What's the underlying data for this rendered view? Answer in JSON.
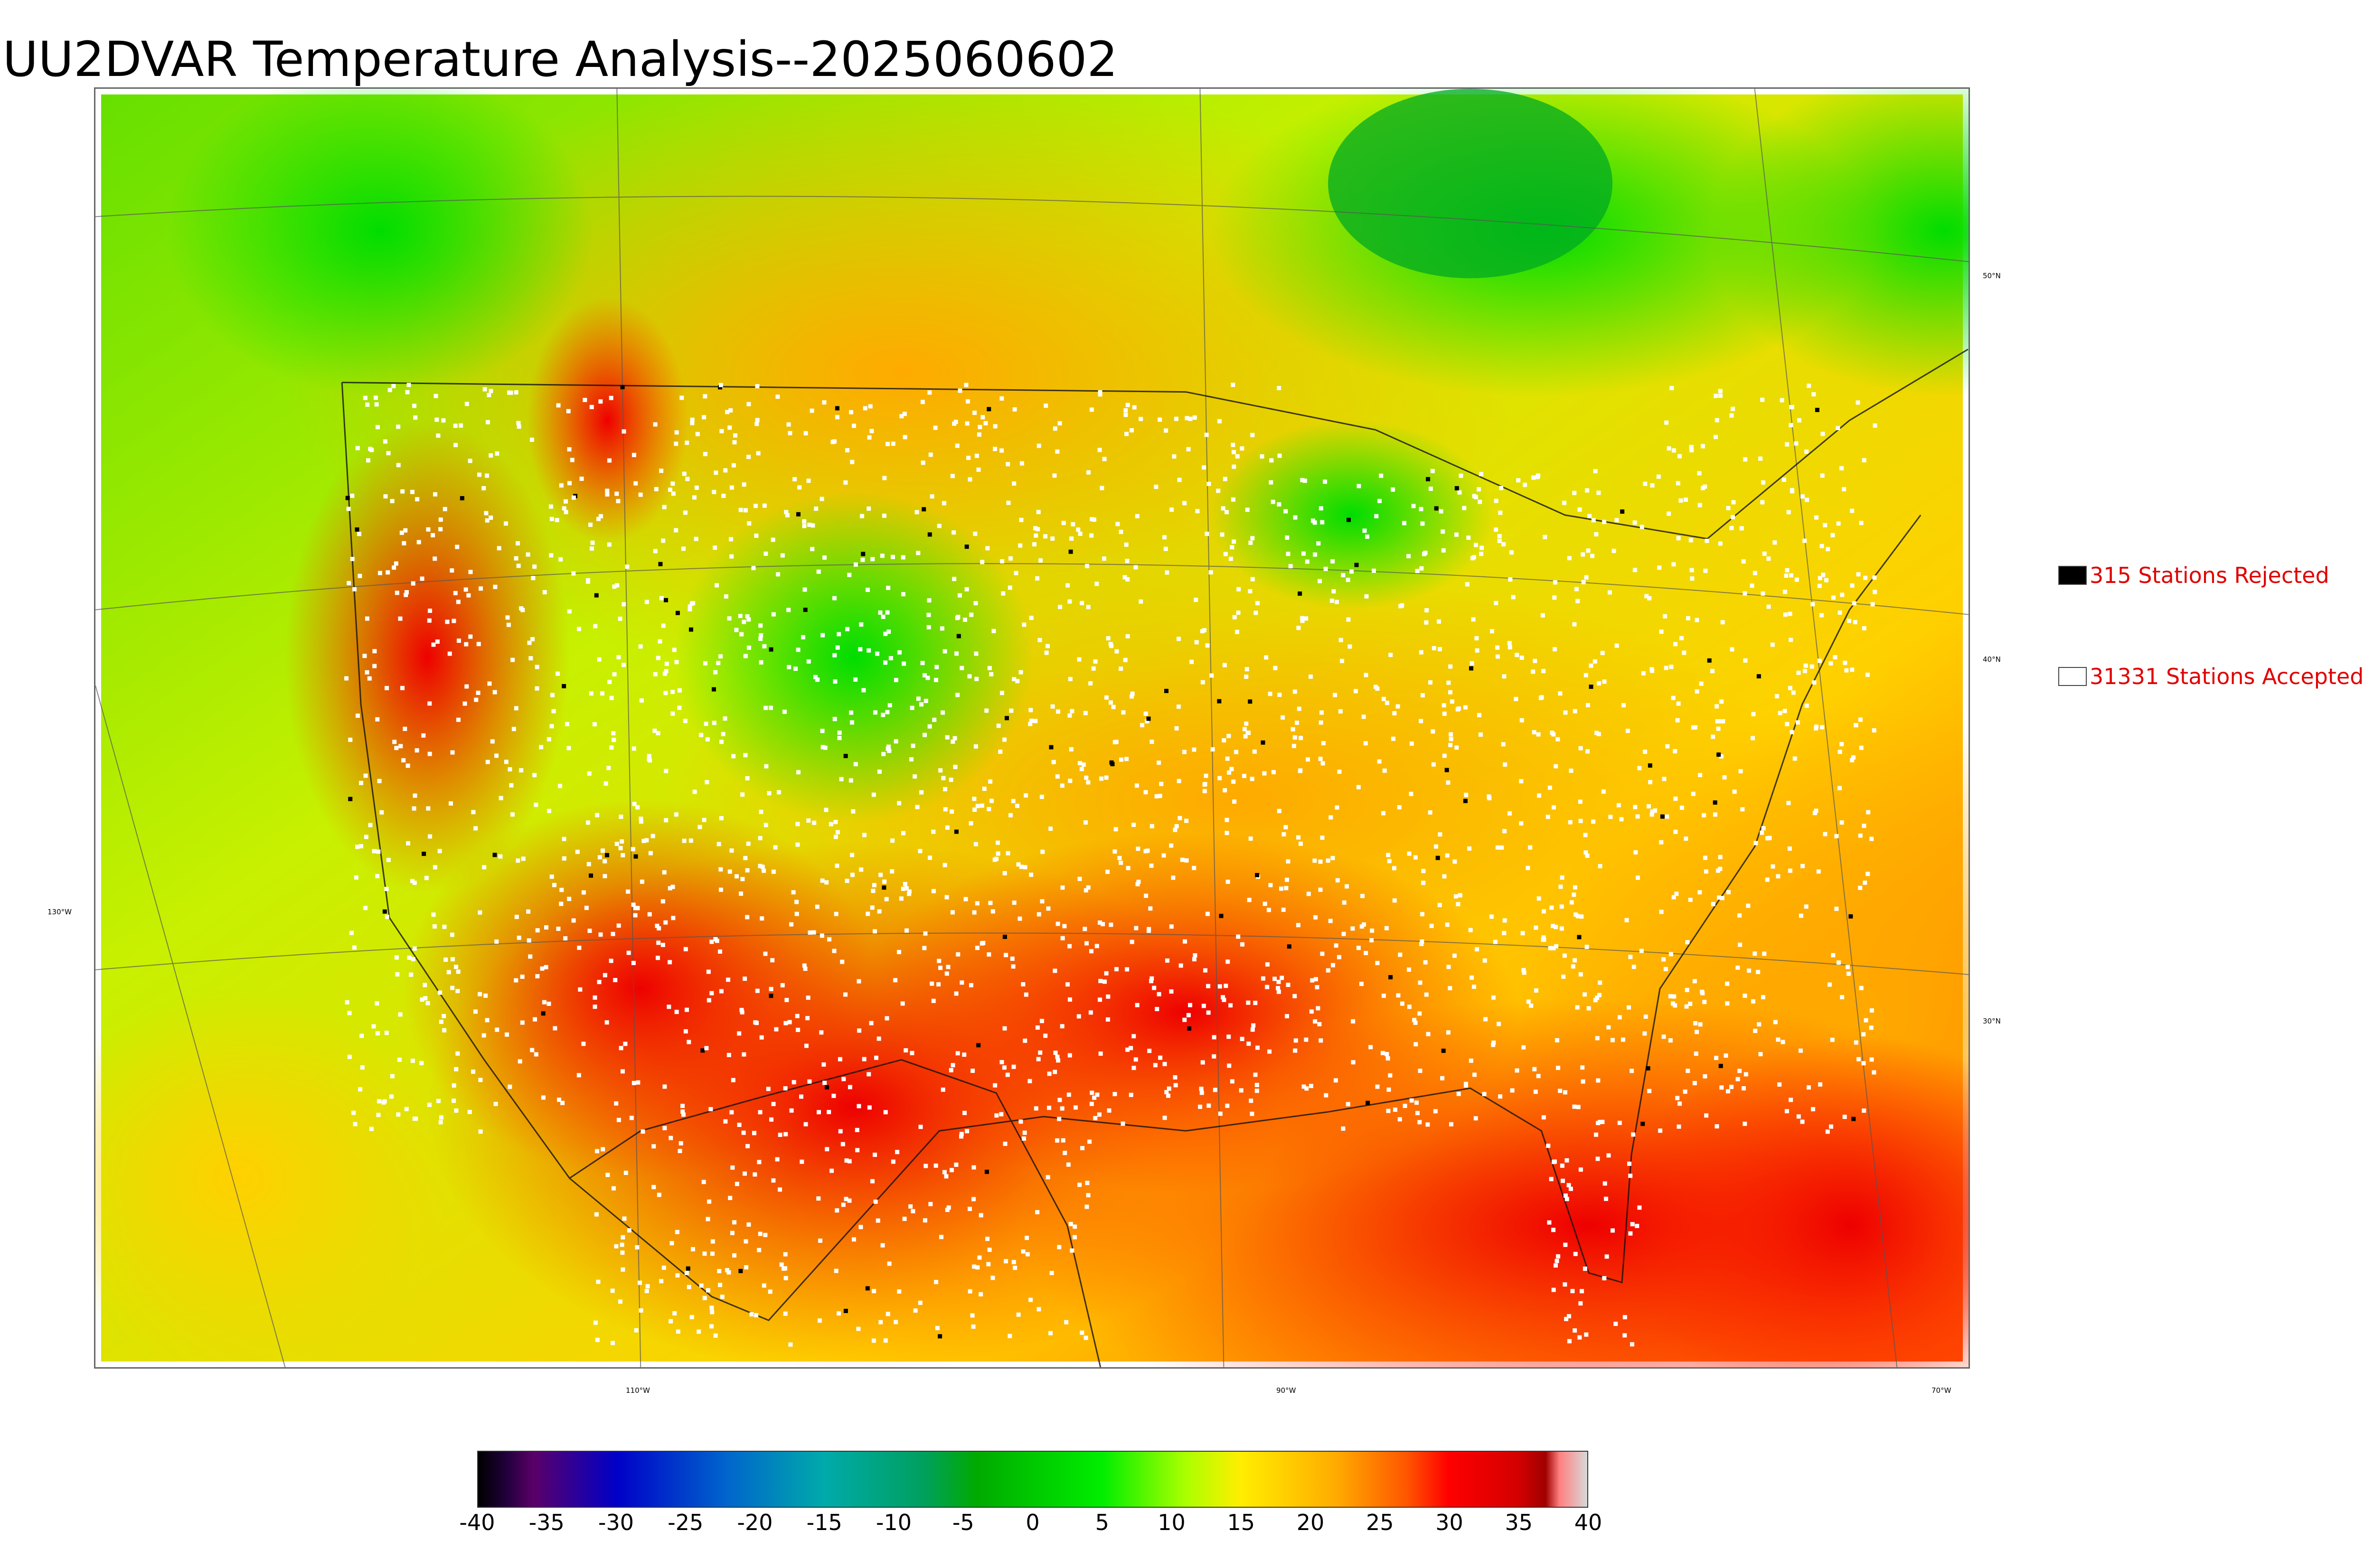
{
  "title": "UU2DVAR Temperature Analysis--2025060602",
  "legend": {
    "rejected": {
      "label": "315 Stations Rejected",
      "color": "#000000"
    },
    "accepted": {
      "label": "31331 Stations Accepted",
      "color": "#ffffff"
    }
  },
  "lat_labels": [
    "50°N",
    "40°N",
    "30°N"
  ],
  "lon_labels": [
    "130°W",
    "110°W",
    "90°W",
    "70°W"
  ],
  "colorbar": {
    "ticks": [
      "-40",
      "-35",
      "-30",
      "-25",
      "-20",
      "-15",
      "-10",
      "-5",
      "0",
      "5",
      "10",
      "15",
      "20",
      "25",
      "30",
      "35",
      "40"
    ],
    "range": [
      -40,
      40
    ],
    "stops": [
      {
        "v": -40,
        "c": "#000000"
      },
      {
        "v": -38,
        "c": "#20003a"
      },
      {
        "v": -36,
        "c": "#5a0068"
      },
      {
        "v": -30,
        "c": "#0000c8"
      },
      {
        "v": -22,
        "c": "#0066cc"
      },
      {
        "v": -15,
        "c": "#00aaaa"
      },
      {
        "v": -8,
        "c": "#00a060"
      },
      {
        "v": -4,
        "c": "#00aa00"
      },
      {
        "v": 5,
        "c": "#00ee00"
      },
      {
        "v": 11,
        "c": "#aaff00"
      },
      {
        "v": 15,
        "c": "#ffee00"
      },
      {
        "v": 22,
        "c": "#ffaa00"
      },
      {
        "v": 27,
        "c": "#ff5500"
      },
      {
        "v": 30,
        "c": "#ff0000"
      },
      {
        "v": 35,
        "c": "#d40000"
      },
      {
        "v": 37,
        "c": "#a00000"
      },
      {
        "v": 38,
        "c": "#ff8080"
      },
      {
        "v": 40,
        "c": "#d8d8d8"
      }
    ]
  },
  "colors": {
    "background_field": "#e8f000",
    "warm": "#ff3300",
    "hot": "#ff0000",
    "mild": "#ffcc00",
    "cool": "#00e000"
  }
}
